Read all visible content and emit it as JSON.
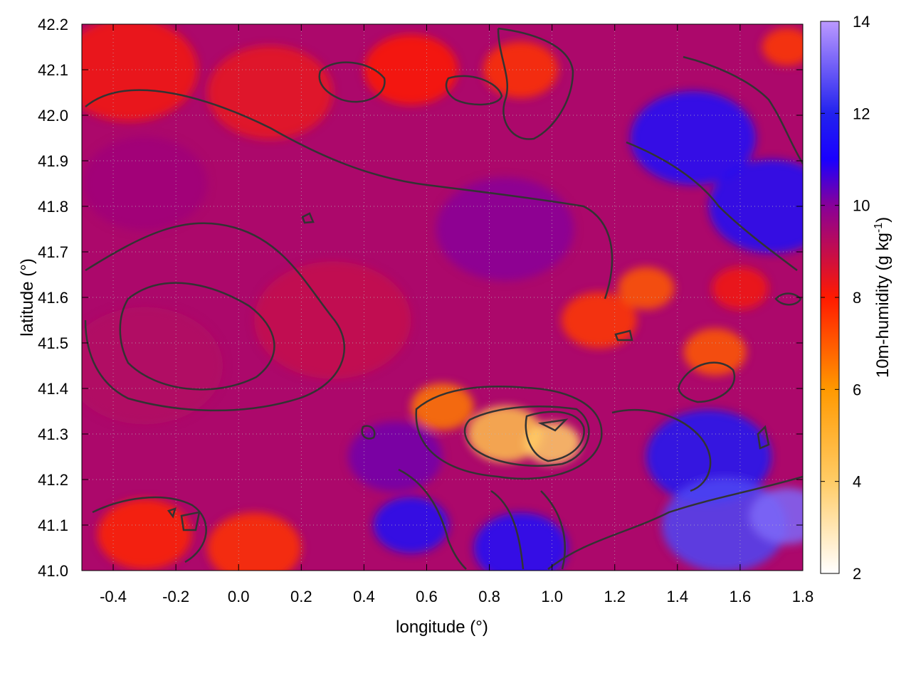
{
  "chart_data": {
    "type": "heatmap",
    "title": "",
    "xlabel": "longitude (°)",
    "ylabel": "latitude (°)",
    "xlim": [
      -0.5,
      1.8
    ],
    "ylim": [
      41.0,
      42.2
    ],
    "x_ticks": [
      {
        "value": -0.4,
        "label": "-0.4"
      },
      {
        "value": -0.2,
        "label": "-0.2"
      },
      {
        "value": 0.0,
        "label": "0.0"
      },
      {
        "value": 0.2,
        "label": "0.2"
      },
      {
        "value": 0.4,
        "label": "0.4"
      },
      {
        "value": 0.6,
        "label": "0.6"
      },
      {
        "value": 0.8,
        "label": "0.8"
      },
      {
        "value": 1.0,
        "label": "1.0"
      },
      {
        "value": 1.2,
        "label": "1.2"
      },
      {
        "value": 1.4,
        "label": "1.4"
      },
      {
        "value": 1.6,
        "label": "1.6"
      },
      {
        "value": 1.8,
        "label": "1.8"
      }
    ],
    "y_ticks": [
      {
        "value": 41.0,
        "label": "41.0"
      },
      {
        "value": 41.1,
        "label": "41.1"
      },
      {
        "value": 41.2,
        "label": "41.2"
      },
      {
        "value": 41.3,
        "label": "41.3"
      },
      {
        "value": 41.4,
        "label": "41.4"
      },
      {
        "value": 41.5,
        "label": "41.5"
      },
      {
        "value": 41.6,
        "label": "41.6"
      },
      {
        "value": 41.7,
        "label": "41.7"
      },
      {
        "value": 41.8,
        "label": "41.8"
      },
      {
        "value": 41.9,
        "label": "41.9"
      },
      {
        "value": 42.0,
        "label": "42.0"
      },
      {
        "value": 42.1,
        "label": "42.1"
      },
      {
        "value": 42.2,
        "label": "42.2"
      }
    ],
    "colorbar": {
      "label_main": "10m-humidity (g kg",
      "label_sup": "-1",
      "label_end": ")",
      "range": [
        2,
        14
      ],
      "ticks": [
        {
          "value": 2,
          "label": "2"
        },
        {
          "value": 4,
          "label": "4"
        },
        {
          "value": 6,
          "label": "6"
        },
        {
          "value": 8,
          "label": "8"
        },
        {
          "value": 10,
          "label": "10"
        },
        {
          "value": 12,
          "label": "12"
        },
        {
          "value": 14,
          "label": "14"
        }
      ],
      "stops": [
        {
          "value": 2,
          "color": "#ffffff"
        },
        {
          "value": 4,
          "color": "#ffcc66"
        },
        {
          "value": 6,
          "color": "#ff9900"
        },
        {
          "value": 8,
          "color": "#ff1a00"
        },
        {
          "value": 10,
          "color": "#880099"
        },
        {
          "value": 11,
          "color": "#1a00ff"
        },
        {
          "value": 12,
          "color": "#2222ee"
        },
        {
          "value": 14,
          "color": "#bb99ff"
        }
      ]
    },
    "grid": true,
    "field_blobs": [
      {
        "lon": -0.35,
        "lat": 42.1,
        "value": 8.2,
        "r": 0.22
      },
      {
        "lon": 0.1,
        "lat": 42.05,
        "value": 8.4,
        "r": 0.2
      },
      {
        "lon": 0.55,
        "lat": 42.1,
        "value": 8.0,
        "r": 0.15
      },
      {
        "lon": 0.9,
        "lat": 42.1,
        "value": 7.6,
        "r": 0.12
      },
      {
        "lon": 0.3,
        "lat": 41.55,
        "value": 9.0,
        "r": 0.25
      },
      {
        "lon": -0.3,
        "lat": 41.45,
        "value": 9.3,
        "r": 0.25
      },
      {
        "lon": -0.3,
        "lat": 41.85,
        "value": 9.6,
        "r": 0.2
      },
      {
        "lon": 0.85,
        "lat": 41.75,
        "value": 10.0,
        "r": 0.22
      },
      {
        "lon": 0.5,
        "lat": 41.25,
        "value": 10.2,
        "r": 0.15
      },
      {
        "lon": 0.85,
        "lat": 41.3,
        "value": 4.5,
        "r": 0.12
      },
      {
        "lon": 1.0,
        "lat": 41.28,
        "value": 4.0,
        "r": 0.09
      },
      {
        "lon": 0.65,
        "lat": 41.36,
        "value": 6.5,
        "r": 0.1
      },
      {
        "lon": 1.15,
        "lat": 41.55,
        "value": 7.5,
        "r": 0.12
      },
      {
        "lon": 1.3,
        "lat": 41.62,
        "value": 7.0,
        "r": 0.09
      },
      {
        "lon": 1.52,
        "lat": 41.48,
        "value": 7.0,
        "r": 0.1
      },
      {
        "lon": 1.45,
        "lat": 41.95,
        "value": 11.3,
        "r": 0.2
      },
      {
        "lon": 1.7,
        "lat": 41.8,
        "value": 11.5,
        "r": 0.2
      },
      {
        "lon": 1.5,
        "lat": 41.25,
        "value": 11.6,
        "r": 0.2
      },
      {
        "lon": 1.55,
        "lat": 41.1,
        "value": 12.6,
        "r": 0.2
      },
      {
        "lon": 1.75,
        "lat": 41.12,
        "value": 13.2,
        "r": 0.12
      },
      {
        "lon": 0.55,
        "lat": 41.1,
        "value": 11.5,
        "r": 0.12
      },
      {
        "lon": 0.9,
        "lat": 41.05,
        "value": 11.3,
        "r": 0.15
      },
      {
        "lon": -0.3,
        "lat": 41.08,
        "value": 7.8,
        "r": 0.15
      },
      {
        "lon": 0.05,
        "lat": 41.05,
        "value": 7.6,
        "r": 0.15
      },
      {
        "lon": 1.75,
        "lat": 42.15,
        "value": 7.5,
        "r": 0.08
      },
      {
        "lon": 1.6,
        "lat": 41.62,
        "value": 8.2,
        "r": 0.09
      }
    ],
    "background_value": 9.4
  }
}
